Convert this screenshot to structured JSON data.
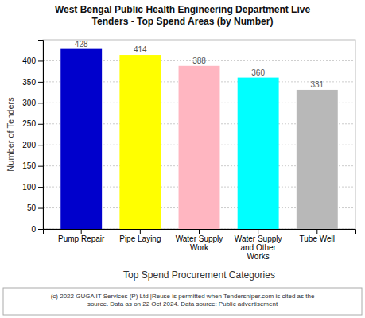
{
  "chart_data": {
    "type": "bar",
    "title": "West Bengal Public Health Engineering Department Live\nTenders - Top Spend Areas (by Number)",
    "categories": [
      "Pump Repair",
      "Pipe Laying",
      "Water Supply\nWork",
      "Water Supply\nand Other\nWorks",
      "Tube Well"
    ],
    "values": [
      428,
      414,
      388,
      360,
      331
    ],
    "colors": [
      "#0000cc",
      "#ffff00",
      "#ffb6c1",
      "#00ffff",
      "#b8b8b8"
    ],
    "ylabel": "Number of Tenders",
    "xlabel": "Top Spend Procurement Categories",
    "ylim": [
      0,
      450
    ],
    "yticks": [
      0,
      50,
      100,
      150,
      200,
      250,
      300,
      350,
      400
    ],
    "grid": true,
    "data_labels": true,
    "footnote": "(c) 2022 GUGA IT Services (P) Ltd |Reuse is permitted when Tendersniper.com is cited as the\nsource. Data as on 22 Oct 2024. Data source: Public advertisement"
  }
}
